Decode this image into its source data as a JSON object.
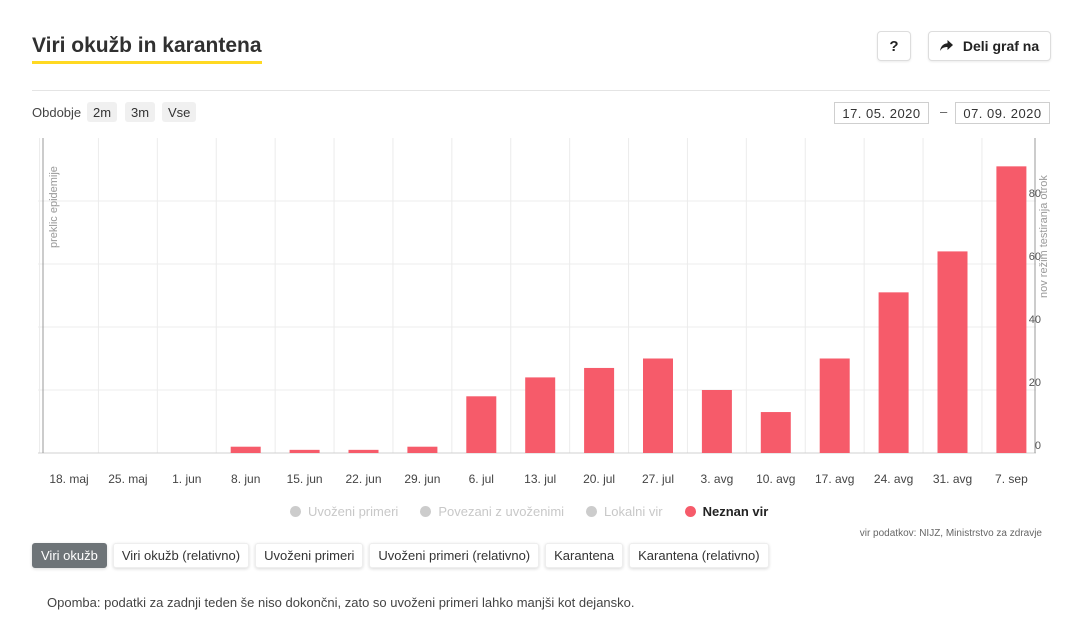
{
  "header": {
    "title": "Viri okužb in karantena",
    "help_label": "?",
    "share_label": "Deli graf na"
  },
  "period": {
    "label": "Obdobje",
    "options": [
      "2m",
      "3m",
      "Vse"
    ],
    "date_from": "17. 05. 2020",
    "date_separator": "–",
    "date_to": "07. 09. 2020"
  },
  "colors": {
    "bar": "#f65b6a",
    "legend_off": "#cccccc",
    "accent_underline": "#ffd922",
    "tab_active": "#6e7478"
  },
  "chart_data": {
    "type": "bar",
    "categories": [
      "18. maj",
      "25. maj",
      "1. jun",
      "8. jun",
      "15. jun",
      "22. jun",
      "29. jun",
      "6. jul",
      "13. jul",
      "20. jul",
      "27. jul",
      "3. avg",
      "10. avg",
      "17. avg",
      "24. avg",
      "31. avg",
      "7. sep"
    ],
    "series": [
      {
        "name": "Neznan vir",
        "values": [
          0,
          0,
          0,
          2,
          1,
          1,
          2,
          18,
          24,
          27,
          30,
          20,
          13,
          30,
          51,
          64,
          91
        ]
      }
    ],
    "ylim": [
      0,
      100
    ],
    "yticks": [
      0,
      20,
      40,
      60,
      80
    ],
    "grid": true,
    "annotations": [
      {
        "label": "preklic epidemije",
        "at": "18. maj"
      },
      {
        "label": "nov režim testiranja otrok",
        "at": "7. sep"
      }
    ],
    "legend": {
      "position": "bottom",
      "items": [
        {
          "label": "Uvoženi primeri",
          "active": false
        },
        {
          "label": "Povezani z uvoženimi",
          "active": false
        },
        {
          "label": "Lokalni vir",
          "active": false
        },
        {
          "label": "Neznan vir",
          "active": true
        }
      ]
    }
  },
  "source": "vir podatkov: NIJZ, Ministrstvo za zdravje",
  "tabs": [
    {
      "label": "Viri okužb",
      "active": true
    },
    {
      "label": "Viri okužb (relativno)",
      "active": false
    },
    {
      "label": "Uvoženi primeri",
      "active": false
    },
    {
      "label": "Uvoženi primeri (relativno)",
      "active": false
    },
    {
      "label": "Karantena",
      "active": false
    },
    {
      "label": "Karantena (relativno)",
      "active": false
    }
  ],
  "note": "Opomba: podatki za zadnji teden še niso dokončni, zato so uvoženi primeri lahko manjši kot dejansko."
}
